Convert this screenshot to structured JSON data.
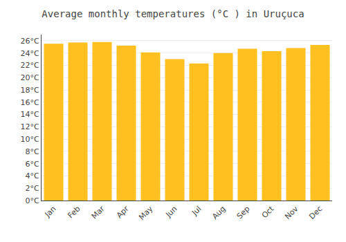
{
  "chart_data": {
    "type": "bar",
    "title": "Average monthly temperatures (°C ) in Uruçuca",
    "categories": [
      "Jan",
      "Feb",
      "Mar",
      "Apr",
      "May",
      "Jun",
      "Jul",
      "Aug",
      "Sep",
      "Oct",
      "Nov",
      "Dec"
    ],
    "values": [
      25.5,
      25.7,
      25.8,
      25.2,
      24.1,
      23.0,
      22.3,
      24.0,
      24.7,
      24.3,
      24.8,
      25.3
    ],
    "color": "#FFC020",
    "ylim": [
      0,
      27
    ],
    "yticks": [
      {
        "value": 0,
        "label": "0°C"
      },
      {
        "value": 2,
        "label": "2°C"
      },
      {
        "value": 4,
        "label": "4°C"
      },
      {
        "value": 6,
        "label": "6°C"
      },
      {
        "value": 8,
        "label": "8°C"
      },
      {
        "value": 10,
        "label": "10°C"
      },
      {
        "value": 12,
        "label": "12°C"
      },
      {
        "value": 14,
        "label": "14°C"
      },
      {
        "value": 16,
        "label": "16°C"
      },
      {
        "value": 18,
        "label": "18°C"
      },
      {
        "value": 20,
        "label": "20°C"
      },
      {
        "value": 22,
        "label": "22°C"
      },
      {
        "value": 24,
        "label": "24°C"
      },
      {
        "value": 26,
        "label": "26°C"
      }
    ],
    "grid": true
  }
}
